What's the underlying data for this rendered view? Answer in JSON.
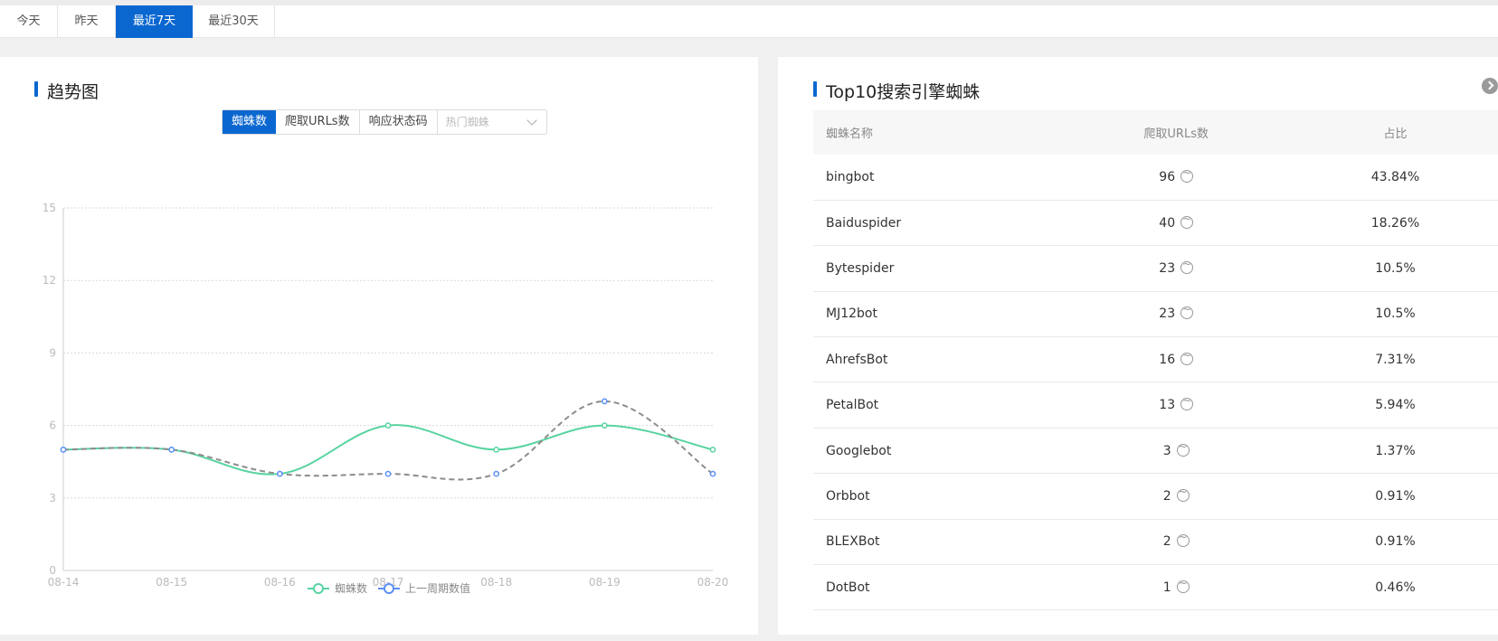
{
  "date_tabs": [
    "今天",
    "昨天",
    "最近7天",
    "最近30天"
  ],
  "date_tab_active": 2,
  "left_panel": {
    "title": "趋势图",
    "segments": [
      "蜘蛛数",
      "爬取URLs数",
      "响应状态码"
    ],
    "segment_active": 0,
    "select_placeholder": "热门蜘蛛"
  },
  "chart_data": {
    "type": "line",
    "categories": [
      "08-14",
      "08-15",
      "08-16",
      "08-17",
      "08-18",
      "08-19",
      "08-20"
    ],
    "yticks": [
      0,
      3,
      6,
      9,
      12,
      15
    ],
    "ylim": [
      0,
      15
    ],
    "grid": true,
    "legend_position": "bottom-center",
    "series": [
      {
        "name": "蜘蛛数",
        "values": [
          5,
          5,
          4,
          6,
          5,
          6,
          5
        ],
        "color": "#58d3a0",
        "style": "solid"
      },
      {
        "name": "上一周期数值",
        "values": [
          5,
          5,
          4,
          4,
          4,
          7,
          4
        ],
        "color": "#8c8c8c",
        "marker_color": "#5b8ff9",
        "style": "dashed"
      }
    ]
  },
  "right_panel": {
    "title": "Top10搜索引擎蜘蛛",
    "headers": [
      "蜘蛛名称",
      "爬取URLs数",
      "占比"
    ],
    "rows": [
      {
        "name": "bingbot",
        "count": "96",
        "pct": "43.84%"
      },
      {
        "name": "Baiduspider",
        "count": "40",
        "pct": "18.26%"
      },
      {
        "name": "Bytespider",
        "count": "23",
        "pct": "10.5%"
      },
      {
        "name": "MJ12bot",
        "count": "23",
        "pct": "10.5%"
      },
      {
        "name": "AhrefsBot",
        "count": "16",
        "pct": "7.31%"
      },
      {
        "name": "PetalBot",
        "count": "13",
        "pct": "5.94%"
      },
      {
        "name": "Googlebot",
        "count": "3",
        "pct": "1.37%"
      },
      {
        "name": "Orbbot",
        "count": "2",
        "pct": "0.91%"
      },
      {
        "name": "BLEXBot",
        "count": "2",
        "pct": "0.91%"
      },
      {
        "name": "DotBot",
        "count": "1",
        "pct": "0.46%"
      }
    ],
    "trend_icon": "trend-circle-icon",
    "next_icon": "chevron-right-icon"
  }
}
